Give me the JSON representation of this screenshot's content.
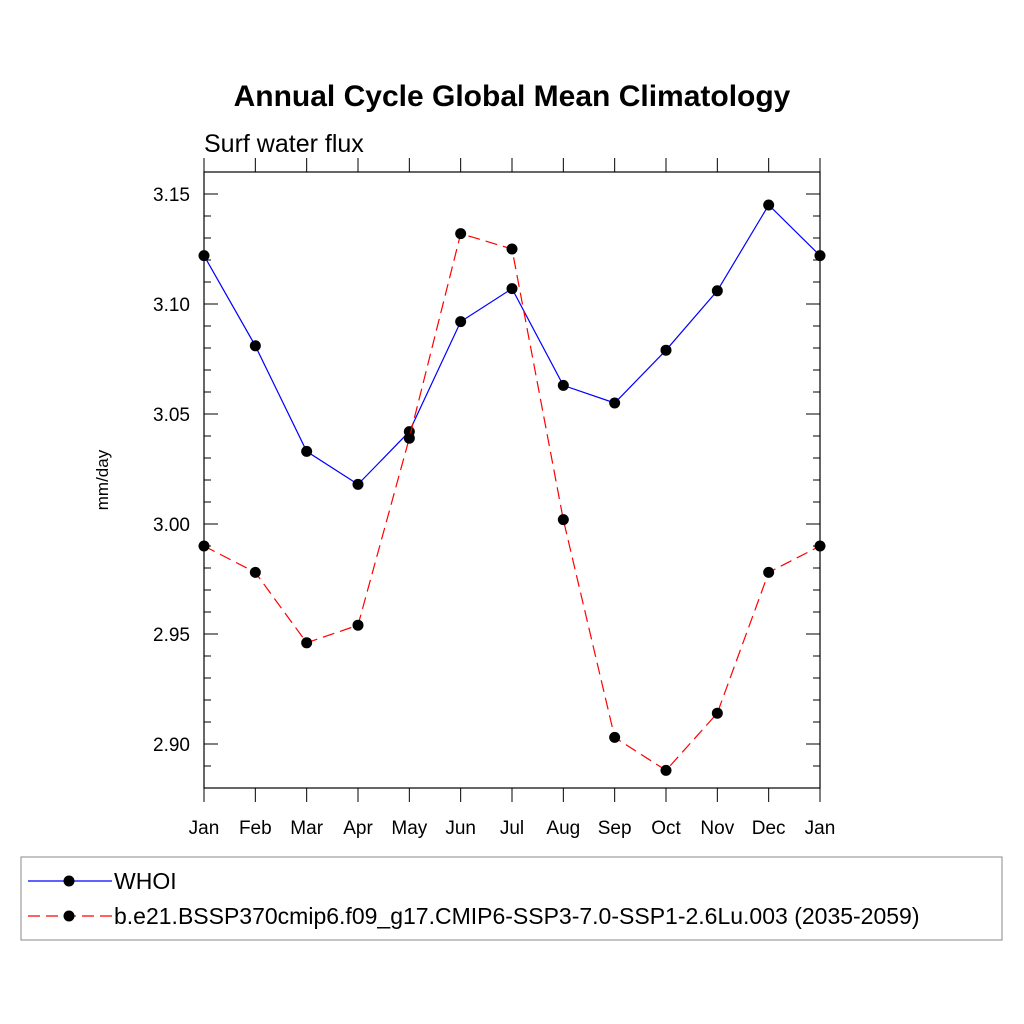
{
  "chart_data": {
    "type": "line",
    "title": "Annual Cycle Global Mean Climatology",
    "subtitle": "Surf water flux",
    "ylabel": "mm/day",
    "xlabel": "",
    "categories": [
      "Jan",
      "Feb",
      "Mar",
      "Apr",
      "May",
      "Jun",
      "Jul",
      "Aug",
      "Sep",
      "Oct",
      "Nov",
      "Dec",
      "Jan"
    ],
    "ylim": [
      2.88,
      3.16
    ],
    "yticks": [
      2.9,
      2.95,
      3.0,
      3.05,
      3.1,
      3.15
    ],
    "ytick_labels": [
      "2.90",
      "2.95",
      "3.00",
      "3.05",
      "3.10",
      "3.15"
    ],
    "grid": false,
    "legend_position": "bottom",
    "series": [
      {
        "name": "WHOI",
        "color": "#0000ff",
        "style": "solid",
        "marker": "filled-circle",
        "values": [
          3.122,
          3.081,
          3.033,
          3.018,
          3.042,
          3.092,
          3.107,
          3.063,
          3.055,
          3.079,
          3.106,
          3.145,
          3.122
        ]
      },
      {
        "name": "b.e21.BSSP370cmip6.f09_g17.CMIP6-SSP3-7.0-SSP1-2.6Lu.003 (2035-2059)",
        "color": "#ff0000",
        "style": "dashed",
        "marker": "filled-circle",
        "values": [
          2.99,
          2.978,
          2.946,
          2.954,
          3.039,
          3.132,
          3.125,
          3.002,
          2.903,
          2.888,
          2.914,
          2.978,
          2.99
        ]
      }
    ]
  }
}
